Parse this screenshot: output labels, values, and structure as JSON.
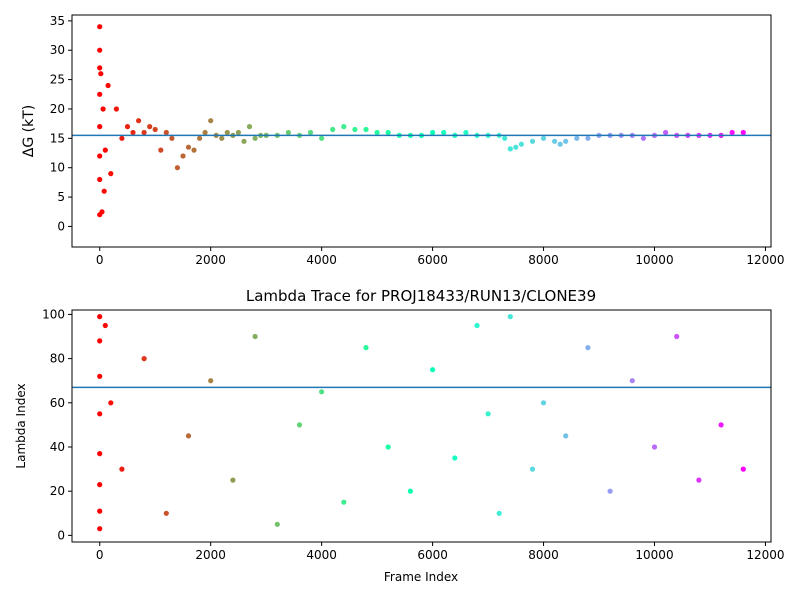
{
  "chart_data": [
    {
      "type": "scatter",
      "title": "",
      "xlabel": "",
      "ylabel": "ΔG (kT)",
      "xlim": [
        -500,
        12100
      ],
      "ylim": [
        -3.5,
        36
      ],
      "xticks": [
        0,
        2000,
        4000,
        6000,
        8000,
        10000,
        12000
      ],
      "yticks": [
        0,
        5,
        10,
        15,
        20,
        25,
        30,
        35
      ],
      "color_map": "rainbow (red at early frames → violet at late frames)",
      "hline": {
        "y": 15.5,
        "color": "#1f77b4"
      },
      "series": [
        {
          "description": "running free-energy estimate per frame",
          "x": [
            0,
            0,
            0,
            0,
            0,
            0,
            0,
            0,
            20,
            40,
            60,
            80,
            100,
            150,
            200,
            300,
            400,
            500,
            600,
            700,
            800,
            900,
            1000,
            1100,
            1200,
            1300,
            1400,
            1500,
            1600,
            1700,
            1800,
            1900,
            2000,
            2100,
            2200,
            2300,
            2400,
            2500,
            2600,
            2700,
            2800,
            2900,
            3000,
            3200,
            3400,
            3600,
            3800,
            4000,
            4200,
            4400,
            4600,
            4800,
            5000,
            5200,
            5400,
            5600,
            5800,
            6000,
            6200,
            6400,
            6600,
            6800,
            7000,
            7200,
            7300,
            7400,
            7500,
            7600,
            7800,
            8000,
            8200,
            8300,
            8400,
            8600,
            8800,
            9000,
            9200,
            9400,
            9600,
            9800,
            10000,
            10200,
            10400,
            10600,
            10800,
            11000,
            11200,
            11400,
            11600
          ],
          "y": [
            34,
            30,
            27,
            22.5,
            17,
            12,
            8,
            2,
            26,
            2.5,
            20,
            6,
            13,
            24,
            9,
            20,
            15,
            17,
            16,
            18,
            16,
            17,
            16.5,
            13,
            16,
            15,
            10,
            12,
            13.5,
            13,
            15,
            16,
            18,
            15.5,
            15,
            16,
            15.5,
            16,
            14.5,
            17,
            15,
            15.5,
            15.5,
            15.5,
            16,
            15.5,
            16,
            15,
            16.5,
            17,
            16.5,
            16.5,
            16,
            16,
            15.5,
            15.5,
            15.5,
            16,
            16,
            15.5,
            16,
            15.5,
            15.5,
            15.5,
            15,
            13.2,
            13.5,
            14,
            14.5,
            15,
            14.5,
            14,
            14.5,
            15,
            15,
            15.5,
            15.5,
            15.5,
            15.5,
            15,
            15.5,
            16,
            15.5,
            15.5,
            15.5,
            15.5,
            15.5,
            16,
            16
          ]
        }
      ]
    },
    {
      "type": "scatter",
      "title": "Lambda Trace for PROJ18433/RUN13/CLONE39",
      "xlabel": "Frame Index",
      "ylabel": "Lambda Index",
      "xlim": [
        -500,
        12100
      ],
      "ylim": [
        -3,
        102
      ],
      "xticks": [
        0,
        2000,
        4000,
        6000,
        8000,
        10000,
        12000
      ],
      "yticks": [
        0,
        20,
        40,
        60,
        80,
        100
      ],
      "color_map": "rainbow (red at early frames → violet at late frames)",
      "hline": {
        "y": 67,
        "color": "#1f77b4"
      },
      "series": [
        {
          "description": "lambda index visited per frame (values span 0–99 across frames 0–11600, with density gaps near frames 7200, 7600, 8200)",
          "x": [
            0,
            0,
            0,
            0,
            0,
            0,
            0,
            0,
            100,
            200,
            400,
            800,
            1200,
            1600,
            2000,
            2400,
            2800,
            3200,
            3600,
            4000,
            4400,
            4800,
            5200,
            5600,
            6000,
            6400,
            6800,
            7000,
            7200,
            7400,
            7800,
            8000,
            8400,
            8800,
            9200,
            9600,
            10000,
            10400,
            10800,
            11200,
            11600
          ],
          "y": [
            99,
            88,
            72,
            55,
            37,
            23,
            11,
            3,
            95,
            60,
            30,
            80,
            10,
            45,
            70,
            25,
            90,
            5,
            50,
            65,
            15,
            85,
            40,
            20,
            75,
            35,
            95,
            55,
            10,
            99,
            30,
            60,
            45,
            85,
            20,
            70,
            40,
            90,
            25,
            50,
            30
          ]
        }
      ]
    }
  ]
}
